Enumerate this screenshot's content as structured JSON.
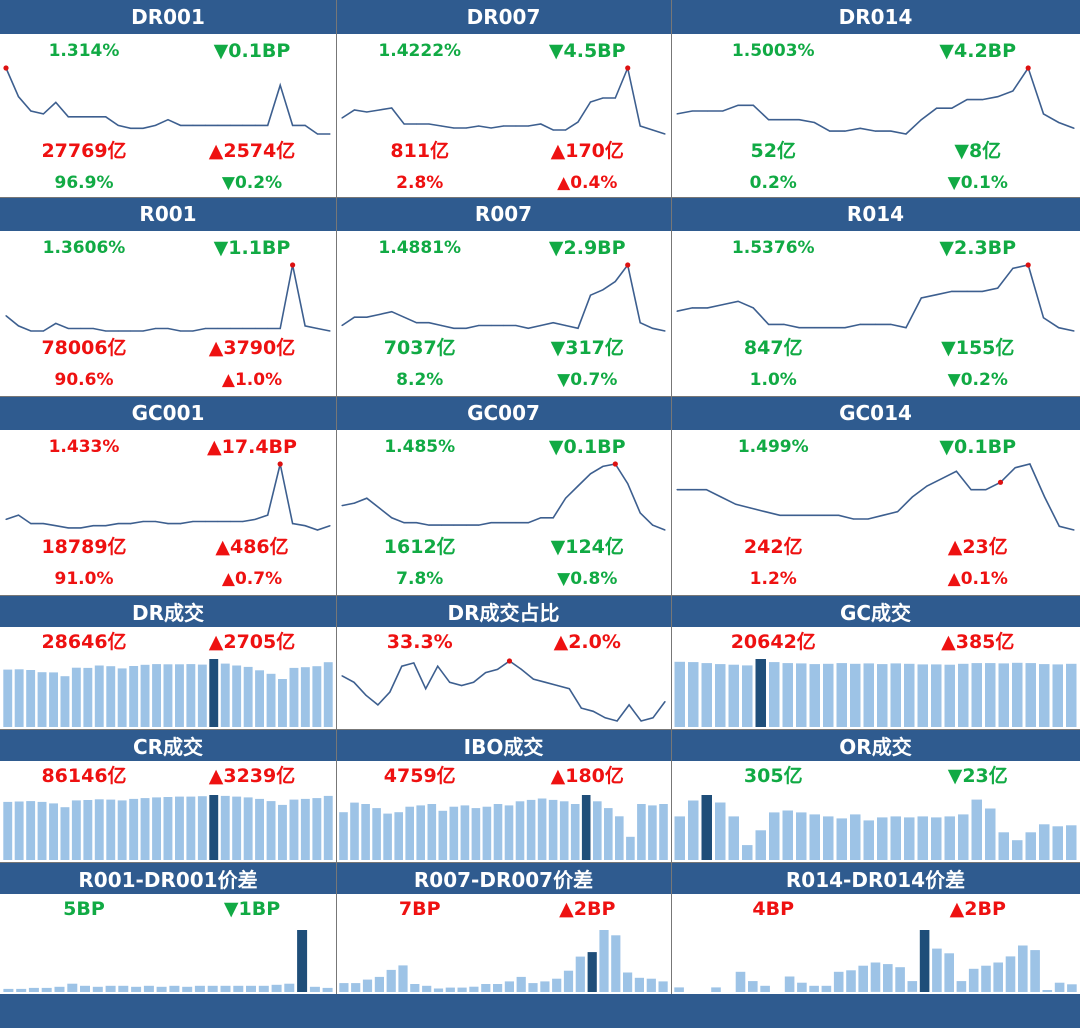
{
  "colors": {
    "header_bg": "#2f5b8f",
    "up": "#ee1111",
    "down": "#11aa44",
    "line": "#3d5f8f",
    "bar": "#9dc3e6",
    "bar_highlight": "#1f4e79",
    "marker": "#dd1111"
  },
  "panels": [
    {
      "title": "DR001",
      "rate": "1.314%",
      "rate_dir": "down",
      "rate_chg": "▼0.1BP",
      "chg_dir": "down",
      "volume": "27769亿",
      "vol_dir": "up",
      "vol_chg": "▲2574亿",
      "vchg_dir": "up",
      "share": "96.9%",
      "share_dir": "down",
      "share_chg": "▼0.2%",
      "schg_dir": "down"
    },
    {
      "title": "DR007",
      "rate": "1.4222%",
      "rate_dir": "down",
      "rate_chg": "▼4.5BP",
      "chg_dir": "down",
      "volume": "811亿",
      "vol_dir": "up",
      "vol_chg": "▲170亿",
      "vchg_dir": "up",
      "share": "2.8%",
      "share_dir": "up",
      "share_chg": "▲0.4%",
      "schg_dir": "up"
    },
    {
      "title": "DR014",
      "rate": "1.5003%",
      "rate_dir": "down",
      "rate_chg": "▼4.2BP",
      "chg_dir": "down",
      "volume": "52亿",
      "vol_dir": "down",
      "vol_chg": "▼8亿",
      "vchg_dir": "down",
      "share": "0.2%",
      "share_dir": "down",
      "share_chg": "▼0.1%",
      "schg_dir": "down"
    },
    {
      "title": "R001",
      "rate": "1.3606%",
      "rate_dir": "down",
      "rate_chg": "▼1.1BP",
      "chg_dir": "down",
      "volume": "78006亿",
      "vol_dir": "up",
      "vol_chg": "▲3790亿",
      "vchg_dir": "up",
      "share": "90.6%",
      "share_dir": "up",
      "share_chg": "▲1.0%",
      "schg_dir": "up"
    },
    {
      "title": "R007",
      "rate": "1.4881%",
      "rate_dir": "down",
      "rate_chg": "▼2.9BP",
      "chg_dir": "down",
      "volume": "7037亿",
      "vol_dir": "down",
      "vol_chg": "▼317亿",
      "vchg_dir": "down",
      "share": "8.2%",
      "share_dir": "down",
      "share_chg": "▼0.7%",
      "schg_dir": "down"
    },
    {
      "title": "R014",
      "rate": "1.5376%",
      "rate_dir": "down",
      "rate_chg": "▼2.3BP",
      "chg_dir": "down",
      "volume": "847亿",
      "vol_dir": "down",
      "vol_chg": "▼155亿",
      "vchg_dir": "down",
      "share": "1.0%",
      "share_dir": "down",
      "share_chg": "▼0.2%",
      "schg_dir": "down"
    },
    {
      "title": "GC001",
      "rate": "1.433%",
      "rate_dir": "up",
      "rate_chg": "▲17.4BP",
      "chg_dir": "up",
      "volume": "18789亿",
      "vol_dir": "up",
      "vol_chg": "▲486亿",
      "vchg_dir": "up",
      "share": "91.0%",
      "share_dir": "up",
      "share_chg": "▲0.7%",
      "schg_dir": "up"
    },
    {
      "title": "GC007",
      "rate": "1.485%",
      "rate_dir": "down",
      "rate_chg": "▼0.1BP",
      "chg_dir": "down",
      "volume": "1612亿",
      "vol_dir": "down",
      "vol_chg": "▼124亿",
      "vchg_dir": "down",
      "share": "7.8%",
      "share_dir": "down",
      "share_chg": "▼0.8%",
      "schg_dir": "down"
    },
    {
      "title": "GC014",
      "rate": "1.499%",
      "rate_dir": "down",
      "rate_chg": "▼0.1BP",
      "chg_dir": "down",
      "volume": "242亿",
      "vol_dir": "up",
      "vol_chg": "▲23亿",
      "vchg_dir": "up",
      "share": "1.2%",
      "share_dir": "up",
      "share_chg": "▲0.1%",
      "schg_dir": "up"
    },
    {
      "title": "DR成交",
      "value": "28646亿",
      "val_dir": "up",
      "chg": "▲2705亿",
      "chg_dir": "up"
    },
    {
      "title": "DR成交占比",
      "value": "33.3%",
      "val_dir": "up",
      "chg": "▲2.0%",
      "chg_dir": "up"
    },
    {
      "title": "GC成交",
      "value": "20642亿",
      "val_dir": "up",
      "chg": "▲385亿",
      "chg_dir": "up"
    },
    {
      "title": "CR成交",
      "value": "86146亿",
      "val_dir": "up",
      "chg": "▲3239亿",
      "chg_dir": "up"
    },
    {
      "title": "IBO成交",
      "value": "4759亿",
      "val_dir": "up",
      "chg": "▲180亿",
      "chg_dir": "up"
    },
    {
      "title": "OR成交",
      "value": "305亿",
      "val_dir": "down",
      "chg": "▼23亿",
      "chg_dir": "down"
    },
    {
      "title": "R001-DR001价差",
      "value": "5BP",
      "val_dir": "down",
      "chg": "▼1BP",
      "chg_dir": "down"
    },
    {
      "title": "R007-DR007价差",
      "value": "7BP",
      "val_dir": "up",
      "chg": "▲2BP",
      "chg_dir": "up"
    },
    {
      "title": "R014-DR014价差",
      "value": "4BP",
      "val_dir": "up",
      "chg": "▲2BP",
      "chg_dir": "up"
    }
  ],
  "chart_data": [
    {
      "type": "line",
      "title": "DR001",
      "max_index": 0,
      "values": [
        1.58,
        1.48,
        1.43,
        1.42,
        1.46,
        1.41,
        1.41,
        1.41,
        1.41,
        1.38,
        1.37,
        1.37,
        1.38,
        1.4,
        1.38,
        1.38,
        1.38,
        1.38,
        1.38,
        1.38,
        1.38,
        1.38,
        1.52,
        1.38,
        1.38,
        1.35,
        1.35
      ]
    },
    {
      "type": "line",
      "title": "DR007",
      "max_index": 23,
      "values": [
        1.5,
        1.54,
        1.53,
        1.54,
        1.55,
        1.47,
        1.47,
        1.47,
        1.46,
        1.45,
        1.45,
        1.46,
        1.45,
        1.46,
        1.46,
        1.46,
        1.47,
        1.44,
        1.44,
        1.48,
        1.58,
        1.6,
        1.6,
        1.75,
        1.46,
        1.44,
        1.42
      ]
    },
    {
      "type": "line",
      "title": "DR014",
      "max_index": 23,
      "values": [
        1.55,
        1.56,
        1.56,
        1.56,
        1.58,
        1.58,
        1.53,
        1.53,
        1.53,
        1.52,
        1.49,
        1.49,
        1.5,
        1.49,
        1.49,
        1.48,
        1.53,
        1.57,
        1.57,
        1.6,
        1.6,
        1.61,
        1.63,
        1.71,
        1.55,
        1.52,
        1.5
      ]
    },
    {
      "type": "line",
      "title": "R001",
      "max_index": 23,
      "values": [
        1.42,
        1.38,
        1.36,
        1.36,
        1.39,
        1.37,
        1.37,
        1.37,
        1.36,
        1.36,
        1.36,
        1.36,
        1.37,
        1.37,
        1.36,
        1.36,
        1.37,
        1.37,
        1.37,
        1.37,
        1.37,
        1.37,
        1.37,
        1.62,
        1.38,
        1.37,
        1.36
      ]
    },
    {
      "type": "line",
      "title": "R007",
      "max_index": 23,
      "values": [
        1.51,
        1.54,
        1.54,
        1.55,
        1.56,
        1.54,
        1.52,
        1.52,
        1.51,
        1.5,
        1.5,
        1.51,
        1.51,
        1.51,
        1.51,
        1.5,
        1.51,
        1.52,
        1.51,
        1.5,
        1.62,
        1.64,
        1.67,
        1.73,
        1.52,
        1.5,
        1.49
      ]
    },
    {
      "type": "line",
      "title": "R014",
      "max_index": 23,
      "values": [
        1.6,
        1.61,
        1.61,
        1.62,
        1.63,
        1.61,
        1.56,
        1.56,
        1.55,
        1.55,
        1.55,
        1.55,
        1.56,
        1.56,
        1.56,
        1.55,
        1.64,
        1.65,
        1.66,
        1.66,
        1.66,
        1.67,
        1.73,
        1.74,
        1.58,
        1.55,
        1.54
      ]
    },
    {
      "type": "line",
      "title": "GC001",
      "max_index": 22,
      "values": [
        1.31,
        1.33,
        1.29,
        1.29,
        1.28,
        1.27,
        1.27,
        1.28,
        1.28,
        1.29,
        1.29,
        1.3,
        1.3,
        1.29,
        1.29,
        1.3,
        1.3,
        1.3,
        1.3,
        1.3,
        1.31,
        1.33,
        1.57,
        1.29,
        1.28,
        1.26,
        1.28
      ]
    },
    {
      "type": "line",
      "title": "GC007",
      "max_index": 22,
      "values": [
        1.51,
        1.52,
        1.54,
        1.5,
        1.46,
        1.44,
        1.44,
        1.43,
        1.43,
        1.43,
        1.43,
        1.43,
        1.44,
        1.44,
        1.44,
        1.44,
        1.46,
        1.46,
        1.54,
        1.59,
        1.64,
        1.67,
        1.68,
        1.6,
        1.48,
        1.43,
        1.41
      ]
    },
    {
      "type": "line",
      "title": "GC014",
      "max_index": 22,
      "values": [
        1.52,
        1.52,
        1.52,
        1.5,
        1.48,
        1.47,
        1.46,
        1.45,
        1.45,
        1.45,
        1.45,
        1.45,
        1.44,
        1.44,
        1.45,
        1.46,
        1.5,
        1.53,
        1.55,
        1.57,
        1.52,
        1.52,
        1.54,
        1.58,
        1.59,
        1.5,
        1.42,
        1.41
      ]
    },
    {
      "type": "bar",
      "title": "DR成交",
      "highlight_index": 18,
      "values": [
        24200,
        24300,
        24000,
        23100,
        23000,
        21400,
        25000,
        24900,
        25900,
        25600,
        24700,
        25700,
        26200,
        26500,
        26400,
        26400,
        26500,
        26300,
        28646,
        26700,
        25900,
        25300,
        23900,
        22400,
        20200,
        24900,
        25200,
        25600,
        27300
      ]
    },
    {
      "type": "line",
      "title": "DR成交占比",
      "max_index": 14,
      "values": [
        31.0,
        30.0,
        28.0,
        26.5,
        28.5,
        32.5,
        33.0,
        29.0,
        32.5,
        30.0,
        29.5,
        30.0,
        31.5,
        32.0,
        33.3,
        32.0,
        30.5,
        30.0,
        29.5,
        29.0,
        26.0,
        25.5,
        24.5,
        24.0,
        26.5,
        24.0,
        24.5,
        27.0
      ]
    },
    {
      "type": "bar",
      "title": "GC成交",
      "highlight_index": 6,
      "values": [
        19800,
        19700,
        19400,
        19100,
        18900,
        18700,
        20642,
        19700,
        19400,
        19300,
        19100,
        19200,
        19400,
        19200,
        19300,
        19100,
        19300,
        19200,
        19000,
        19000,
        18900,
        19200,
        19400,
        19400,
        19300,
        19500,
        19400,
        19100,
        19000,
        19200
      ]
    },
    {
      "type": "bar",
      "title": "CR成交",
      "highlight_index": 18,
      "values": [
        77000,
        77500,
        78000,
        77000,
        75000,
        70000,
        79000,
        79500,
        80500,
        80000,
        79000,
        81000,
        82000,
        83000,
        83500,
        84000,
        84000,
        84500,
        86146,
        85000,
        84000,
        83000,
        81000,
        78000,
        73000,
        80000,
        81000,
        82000,
        85000
      ]
    },
    {
      "type": "bar",
      "title": "IBO成交",
      "highlight_index": 22,
      "values": [
        3500,
        4200,
        4100,
        3800,
        3400,
        3500,
        3900,
        4000,
        4100,
        3600,
        3900,
        4000,
        3800,
        3900,
        4100,
        4000,
        4300,
        4400,
        4500,
        4400,
        4300,
        4100,
        4759,
        4300,
        3800,
        3200,
        1700,
        4100,
        4000,
        4100
      ]
    },
    {
      "type": "bar",
      "title": "OR成交",
      "highlight_index": 2,
      "values": [
        220,
        300,
        328,
        290,
        220,
        75,
        150,
        240,
        250,
        240,
        230,
        220,
        210,
        230,
        200,
        215,
        220,
        215,
        220,
        215,
        220,
        230,
        305,
        260,
        140,
        100,
        140,
        180,
        170,
        175
      ]
    },
    {
      "type": "bar",
      "title": "R001-DR001价差",
      "highlight_index": 23,
      "values": [
        0.3,
        0.3,
        0.4,
        0.4,
        0.5,
        0.8,
        0.6,
        0.5,
        0.6,
        0.6,
        0.5,
        0.6,
        0.5,
        0.6,
        0.5,
        0.6,
        0.6,
        0.6,
        0.6,
        0.6,
        0.6,
        0.7,
        0.8,
        6.0,
        0.5,
        0.4
      ]
    },
    {
      "type": "bar",
      "title": "R007-DR007价差",
      "highlight_index": 21,
      "values": [
        1.0,
        1.0,
        1.4,
        1.7,
        2.5,
        3.0,
        0.9,
        0.7,
        0.4,
        0.5,
        0.5,
        0.6,
        0.9,
        0.9,
        1.2,
        1.7,
        1.0,
        1.2,
        1.5,
        2.4,
        4.0,
        4.5,
        7.0,
        6.4,
        2.2,
        1.6,
        1.5,
        1.2
      ]
    },
    {
      "type": "bar",
      "title": "R014-DR014价差",
      "highlight_index": 20,
      "values": [
        0.3,
        0,
        0,
        0.3,
        0,
        1.3,
        0.7,
        0.4,
        0,
        1.0,
        0.6,
        0.4,
        0.4,
        1.3,
        1.4,
        1.7,
        1.9,
        1.8,
        1.6,
        0.7,
        4.0,
        2.8,
        2.5,
        0.7,
        1.5,
        1.7,
        1.9,
        2.3,
        3.0,
        2.7,
        0.1,
        0.6,
        0.5
      ]
    }
  ]
}
